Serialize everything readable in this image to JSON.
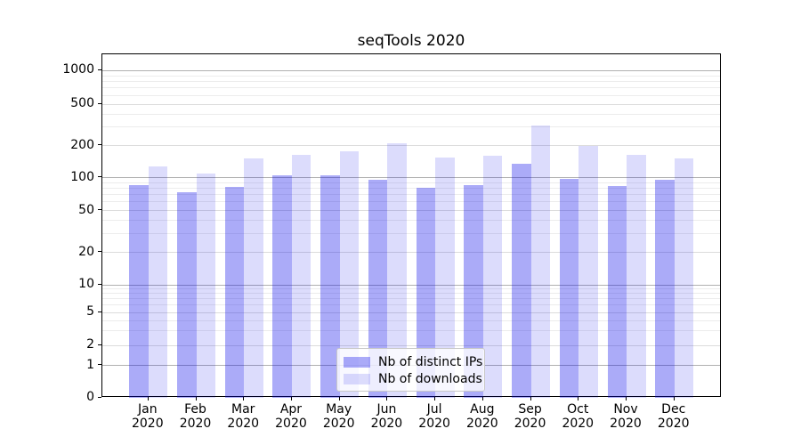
{
  "chart_data": {
    "type": "bar",
    "title": "seqTools 2020",
    "categories": [
      "Jan",
      "Feb",
      "Mar",
      "Apr",
      "May",
      "Jun",
      "Jul",
      "Aug",
      "Sep",
      "Oct",
      "Nov",
      "Dec"
    ],
    "year_label": "2020",
    "series": [
      {
        "name": "Nb of distinct IPs",
        "values": [
          85,
          74,
          82,
          105,
          105,
          95,
          80,
          85,
          136,
          98,
          83,
          95
        ]
      },
      {
        "name": "Nb of downloads",
        "values": [
          128,
          110,
          152,
          163,
          175,
          211,
          155,
          160,
          310,
          197,
          162,
          150
        ]
      }
    ],
    "yscale": "symlog",
    "yticks": [
      0,
      1,
      2,
      5,
      10,
      20,
      50,
      100,
      200,
      500,
      1000
    ],
    "ylim": [
      0,
      1450
    ],
    "grid": "both",
    "legend_position": "lower center"
  },
  "colors": {
    "bar_base": "#0a0aeb",
    "ips_alpha": 0.34,
    "downloads_alpha": 0.14,
    "ips_blended": "#acacf8",
    "downloads_blended": "#dcdcf8",
    "grid_decade": "#b0b0b0",
    "grid_labeled": "#dcdcdc",
    "grid_minor": "#ececec",
    "axis": "#000000"
  }
}
